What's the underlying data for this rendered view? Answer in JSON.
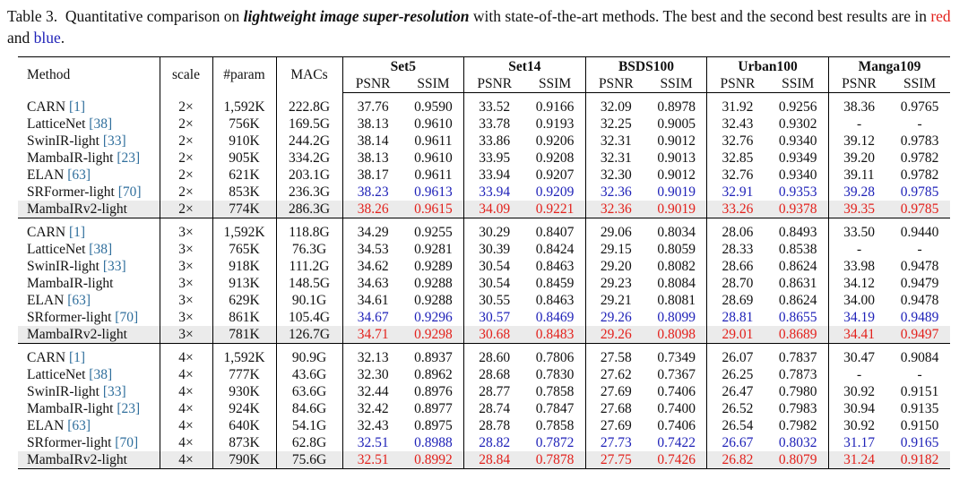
{
  "caption": {
    "label": "Table 3.",
    "text1": "Quantitative comparison on",
    "emph": "lightweight image super-resolution",
    "text2": "with state-of-the-art methods.  The best and the second best results are in",
    "red": "red",
    "and": "and",
    "blue": "blue",
    "end": "."
  },
  "styles": {
    "red": "#e3211c",
    "blue": "#1f22b8",
    "ref": "#2f6e9c",
    "shade": "#ebebeb"
  },
  "header": {
    "method": "Method",
    "scale": "scale",
    "params": "#param",
    "macs": "MACs",
    "datasets": [
      "Set5",
      "Set14",
      "BSDS100",
      "Urban100",
      "Manga109"
    ],
    "metrics": [
      "PSNR",
      "SSIM"
    ]
  },
  "groups": [
    {
      "rows": [
        {
          "method": "CARN",
          "ref": "[1]",
          "scale": "2×",
          "params": "1,592K",
          "macs": "222.8G",
          "values": [
            "37.76",
            "0.9590",
            "33.52",
            "0.9166",
            "32.09",
            "0.8978",
            "31.92",
            "0.9256",
            "38.36",
            "0.9765"
          ]
        },
        {
          "method": "LatticeNet",
          "ref": "[38]",
          "scale": "2×",
          "params": "756K",
          "macs": "169.5G",
          "values": [
            "38.13",
            "0.9610",
            "33.78",
            "0.9193",
            "32.25",
            "0.9005",
            "32.43",
            "0.9302",
            "-",
            "-"
          ]
        },
        {
          "method": "SwinIR-light",
          "ref": "[33]",
          "scale": "2×",
          "params": "910K",
          "macs": "244.2G",
          "values": [
            "38.14",
            "0.9611",
            "33.86",
            "0.9206",
            "32.31",
            "0.9012",
            "32.76",
            "0.9340",
            "39.12",
            "0.9783"
          ]
        },
        {
          "method": "MambaIR-light",
          "ref": "[23]",
          "scale": "2×",
          "params": "905K",
          "macs": "334.2G",
          "values": [
            "38.13",
            "0.9610",
            "33.95",
            "0.9208",
            "32.31",
            "0.9013",
            "32.85",
            "0.9349",
            "39.20",
            "0.9782"
          ]
        },
        {
          "method": "ELAN",
          "ref": "[63]",
          "scale": "2×",
          "params": "621K",
          "macs": "203.1G",
          "values": [
            "38.17",
            "0.9611",
            "33.94",
            "0.9207",
            "32.30",
            "0.9012",
            "32.76",
            "0.9340",
            "39.11",
            "0.9782"
          ]
        },
        {
          "method": "SRFormer-light",
          "ref": "[70]",
          "scale": "2×",
          "params": "853K",
          "macs": "236.3G",
          "highlight": "blue",
          "values": [
            "38.23",
            "0.9613",
            "33.94",
            "0.9209",
            "32.36",
            "0.9019",
            "32.91",
            "0.9353",
            "39.28",
            "0.9785"
          ]
        },
        {
          "method": "MambaIRv2-light",
          "scale": "2×",
          "params": "774K",
          "macs": "286.3G",
          "highlight": "red",
          "shaded": true,
          "values": [
            "38.26",
            "0.9615",
            "34.09",
            "0.9221",
            "32.36",
            "0.9019",
            "33.26",
            "0.9378",
            "39.35",
            "0.9785"
          ]
        }
      ]
    },
    {
      "rows": [
        {
          "method": "CARN",
          "ref": "[1]",
          "scale": "3×",
          "params": "1,592K",
          "macs": "118.8G",
          "values": [
            "34.29",
            "0.9255",
            "30.29",
            "0.8407",
            "29.06",
            "0.8034",
            "28.06",
            "0.8493",
            "33.50",
            "0.9440"
          ]
        },
        {
          "method": "LatticeNet",
          "ref": "[38]",
          "scale": "3×",
          "params": "765K",
          "macs": "76.3G",
          "values": [
            "34.53",
            "0.9281",
            "30.39",
            "0.8424",
            "29.15",
            "0.8059",
            "28.33",
            "0.8538",
            "-",
            "-"
          ]
        },
        {
          "method": "SwinIR-light",
          "ref": "[33]",
          "scale": "3×",
          "params": "918K",
          "macs": "111.2G",
          "values": [
            "34.62",
            "0.9289",
            "30.54",
            "0.8463",
            "29.20",
            "0.8082",
            "28.66",
            "0.8624",
            "33.98",
            "0.9478"
          ]
        },
        {
          "method": "MambaIR-light",
          "scale": "3×",
          "params": "913K",
          "macs": "148.5G",
          "values": [
            "34.63",
            "0.9288",
            "30.54",
            "0.8459",
            "29.23",
            "0.8084",
            "28.70",
            "0.8631",
            "34.12",
            "0.9479"
          ]
        },
        {
          "method": "ELAN",
          "ref": "[63]",
          "scale": "3×",
          "params": "629K",
          "macs": "90.1G",
          "values": [
            "34.61",
            "0.9288",
            "30.55",
            "0.8463",
            "29.21",
            "0.8081",
            "28.69",
            "0.8624",
            "34.00",
            "0.9478"
          ]
        },
        {
          "method": "SRformer-light",
          "ref": "[70]",
          "scale": "3×",
          "params": "861K",
          "macs": "105.4G",
          "highlight": "blue",
          "values": [
            "34.67",
            "0.9296",
            "30.57",
            "0.8469",
            "29.26",
            "0.8099",
            "28.81",
            "0.8655",
            "34.19",
            "0.9489"
          ]
        },
        {
          "method": "MambaIRv2-light",
          "scale": "3×",
          "params": "781K",
          "macs": "126.7G",
          "highlight": "red",
          "shaded": true,
          "values": [
            "34.71",
            "0.9298",
            "30.68",
            "0.8483",
            "29.26",
            "0.8098",
            "29.01",
            "0.8689",
            "34.41",
            "0.9497"
          ]
        }
      ]
    },
    {
      "rows": [
        {
          "method": "CARN",
          "ref": "[1]",
          "scale": "4×",
          "params": "1,592K",
          "macs": "90.9G",
          "values": [
            "32.13",
            "0.8937",
            "28.60",
            "0.7806",
            "27.58",
            "0.7349",
            "26.07",
            "0.7837",
            "30.47",
            "0.9084"
          ]
        },
        {
          "method": "LatticeNet",
          "ref": "[38]",
          "scale": "4×",
          "params": "777K",
          "macs": "43.6G",
          "values": [
            "32.30",
            "0.8962",
            "28.68",
            "0.7830",
            "27.62",
            "0.7367",
            "26.25",
            "0.7873",
            "-",
            "-"
          ]
        },
        {
          "method": "SwinIR-light",
          "ref": "[33]",
          "scale": "4×",
          "params": "930K",
          "macs": "63.6G",
          "values": [
            "32.44",
            "0.8976",
            "28.77",
            "0.7858",
            "27.69",
            "0.7406",
            "26.47",
            "0.7980",
            "30.92",
            "0.9151"
          ]
        },
        {
          "method": "MambaIR-light",
          "ref": "[23]",
          "scale": "4×",
          "params": "924K",
          "macs": "84.6G",
          "values": [
            "32.42",
            "0.8977",
            "28.74",
            "0.7847",
            "27.68",
            "0.7400",
            "26.52",
            "0.7983",
            "30.94",
            "0.9135"
          ]
        },
        {
          "method": "ELAN",
          "ref": "[63]",
          "scale": "4×",
          "params": "640K",
          "macs": "54.1G",
          "values": [
            "32.43",
            "0.8975",
            "28.78",
            "0.7858",
            "27.69",
            "0.7406",
            "26.54",
            "0.7982",
            "30.92",
            "0.9150"
          ]
        },
        {
          "method": "SRformer-light",
          "ref": "[70]",
          "scale": "4×",
          "params": "873K",
          "macs": "62.8G",
          "highlight": "blue",
          "values": [
            "32.51",
            "0.8988",
            "28.82",
            "0.7872",
            "27.73",
            "0.7422",
            "26.67",
            "0.8032",
            "31.17",
            "0.9165"
          ]
        },
        {
          "method": "MambaIRv2-light",
          "scale": "4×",
          "params": "790K",
          "macs": "75.6G",
          "highlight": "red",
          "shaded": true,
          "values": [
            "32.51",
            "0.8992",
            "28.84",
            "0.7878",
            "27.75",
            "0.7426",
            "26.82",
            "0.8079",
            "31.24",
            "0.9182"
          ]
        }
      ]
    }
  ]
}
